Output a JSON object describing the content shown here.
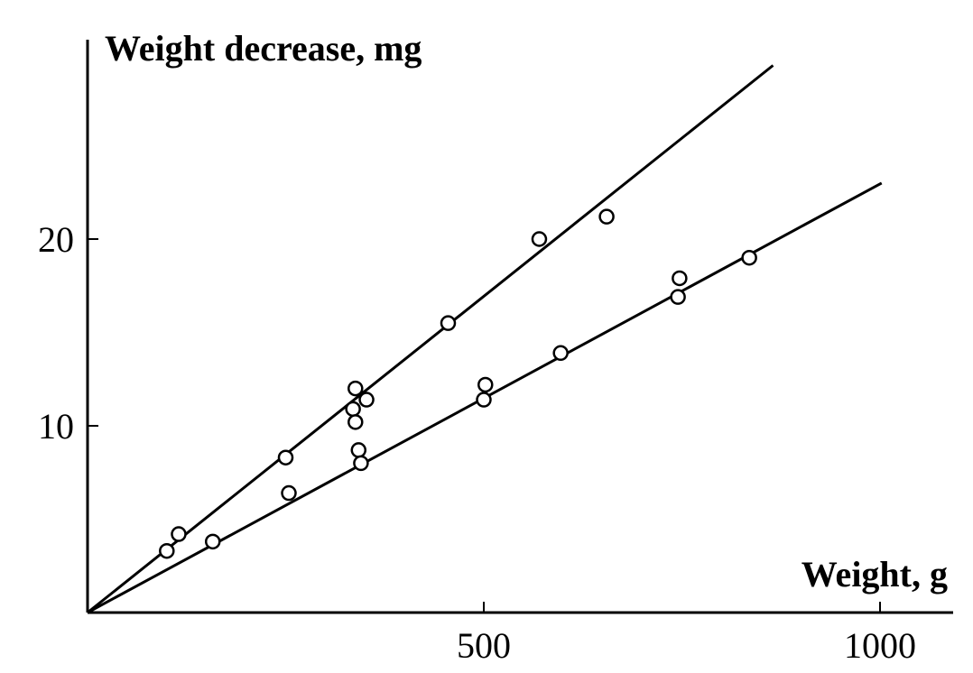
{
  "chart_data": {
    "type": "scatter",
    "xlabel": "Weight, g",
    "ylabel": "Weight decrease, mg",
    "xlim": [
      0,
      1090
    ],
    "ylim": [
      0,
      30.5
    ],
    "x_ticks": [
      500,
      1000
    ],
    "y_ticks": [
      10,
      20
    ],
    "grid": false,
    "series": [
      {
        "points": [
          {
            "x": 100,
            "y": 3.3
          },
          {
            "x": 115,
            "y": 4.2
          },
          {
            "x": 250,
            "y": 8.3
          },
          {
            "x": 335,
            "y": 10.9
          },
          {
            "x": 338,
            "y": 10.2
          },
          {
            "x": 338,
            "y": 12.0
          },
          {
            "x": 352,
            "y": 11.4
          },
          {
            "x": 455,
            "y": 15.5
          },
          {
            "x": 570,
            "y": 20.0
          },
          {
            "x": 655,
            "y": 21.2
          }
        ],
        "fit_line": {
          "x": [
            0,
            865
          ],
          "y": [
            0,
            29.3
          ]
        }
      },
      {
        "points": [
          {
            "x": 158,
            "y": 3.8
          },
          {
            "x": 254,
            "y": 6.4
          },
          {
            "x": 342,
            "y": 8.7
          },
          {
            "x": 345,
            "y": 8.0
          },
          {
            "x": 500,
            "y": 11.4
          },
          {
            "x": 502,
            "y": 12.2
          },
          {
            "x": 597,
            "y": 13.9
          },
          {
            "x": 745,
            "y": 16.9
          },
          {
            "x": 747,
            "y": 17.9
          },
          {
            "x": 835,
            "y": 19.0
          }
        ],
        "fit_line": {
          "x": [
            0,
            1002
          ],
          "y": [
            0,
            23.0
          ]
        }
      }
    ]
  }
}
